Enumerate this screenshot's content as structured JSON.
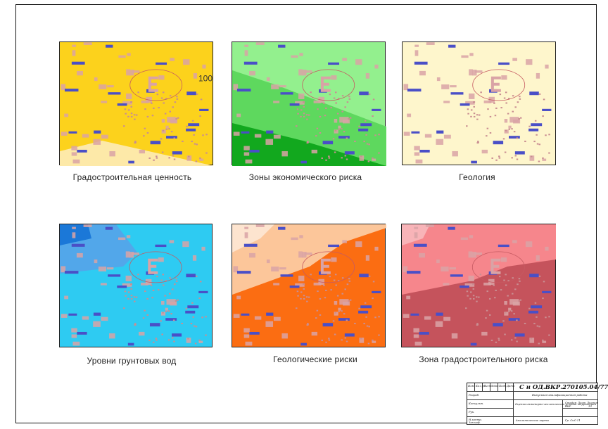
{
  "panels": [
    {
      "caption": "Градостроительная ценность",
      "label": "100",
      "palette": {
        "base": "#fcd21c",
        "zone2": "#fde9a8",
        "zone3": "#fde9a8"
      }
    },
    {
      "caption": "Зоны экономического риска",
      "label": "",
      "palette": {
        "base": "#93f08e",
        "zone2": "#5ed85e",
        "zone3": "#12a81e"
      }
    },
    {
      "caption": "Геология",
      "label": "",
      "palette": {
        "base": "#fef6cc",
        "zone2": "#fef6cc",
        "zone3": "#fef6cc"
      }
    },
    {
      "caption": "Уровни грунтовых вод",
      "label": "",
      "palette": {
        "base": "#2ecbf2",
        "zone2": "#52a7ea",
        "zone3": "#1b78d8"
      }
    },
    {
      "caption": "Геологические риски",
      "label": "",
      "palette": {
        "base": "#fb6d12",
        "zone2": "#fcc69a",
        "zone3": "#fde4cf"
      }
    },
    {
      "caption": "Зона градостроительного риска",
      "label": "",
      "palette": {
        "base": "#c5535c",
        "zone2": "#f6868c",
        "zone3": "#f8b4b8"
      }
    }
  ],
  "stamp": {
    "code": "С н ОД.ВКР.270105.04/77",
    "lines": [
      "Выпускная квалификационная работа",
      "Изм.",
      "Кол.уч",
      "Лист",
      "№док",
      "Подп.",
      "Дата",
      "Разраб.",
      "Консульт.",
      "Рук.",
      "Н.контр.",
      "Зав.каф.",
      "Стадия",
      "Лист",
      "Листов",
      "ВКР",
      "10",
      "Оценка инженерно-геологических условий территории",
      "Аналитические карты",
      "Гр. СиС-11"
    ]
  }
}
